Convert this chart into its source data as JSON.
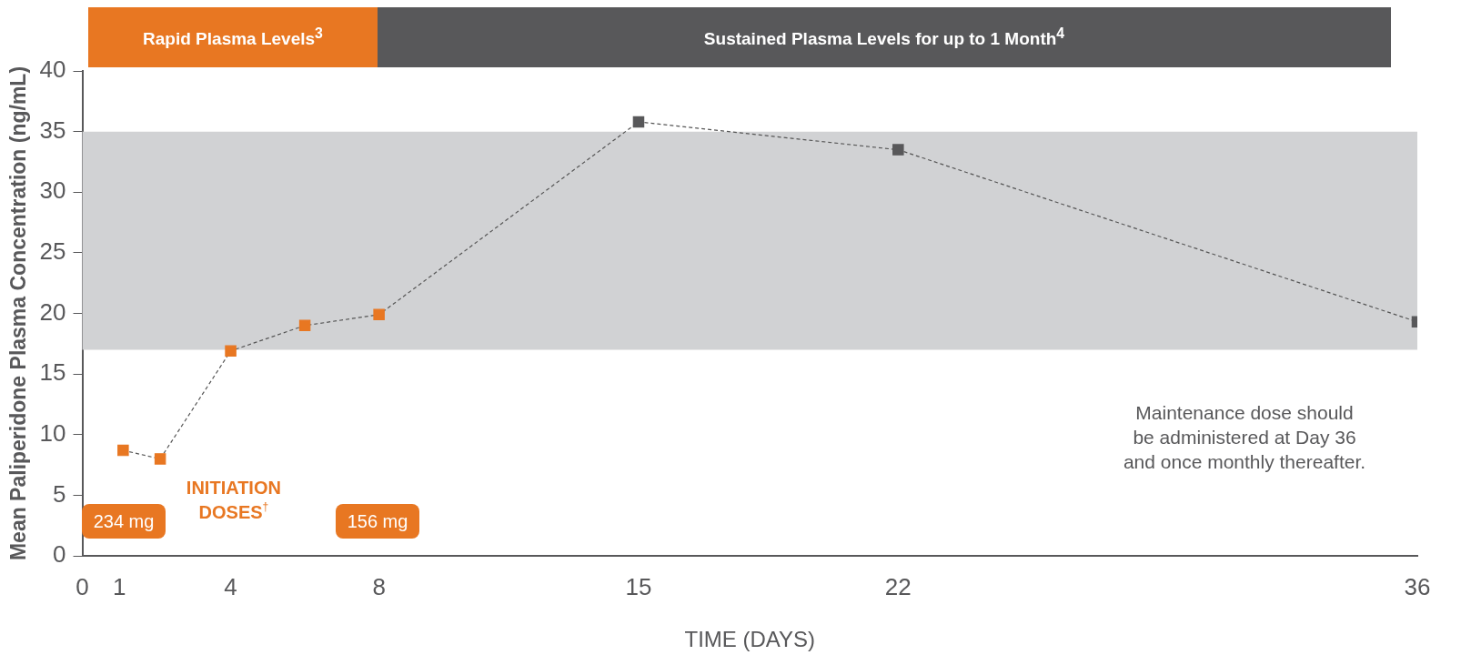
{
  "chart_data": {
    "type": "line",
    "xlabel": "TIME (DAYS)",
    "ylabel": "Mean Paliperidone Plasma Concentration (ng/mL)",
    "x": [
      1.1,
      2.1,
      4,
      6,
      8,
      15,
      22,
      36
    ],
    "series": [
      {
        "color": "#555555",
        "colors": [
          "#e87722",
          "#e87722",
          "#e87722",
          "#e87722",
          "#e87722",
          "#58585a",
          "#58585a",
          "#58585a"
        ],
        "values": [
          8.7,
          8,
          16.9,
          19,
          19.9,
          35.8,
          33.5,
          19.3
        ]
      }
    ],
    "xlim": [
      0,
      36
    ],
    "xticks": [
      0,
      1,
      4,
      8,
      15,
      22,
      36
    ],
    "ylim": [
      0,
      40
    ],
    "yticks": [
      0,
      5,
      10,
      15,
      20,
      25,
      30,
      35,
      40
    ],
    "marker": "square",
    "line_style": "dashed",
    "grid": false,
    "legend": false,
    "bands": [
      {
        "axis": "y",
        "from": 17,
        "to": 35,
        "color": "#d1d2d4"
      }
    ],
    "annotations": [
      "Rapid Plasma Levels$^{3}$",
      "Sustained Plasma Levels for up to 1 Month$^{4}$",
      "234 mg",
      "156 mg",
      "INITIATION\nDOSES$^{†}$",
      "Maintenance dose should\nbe administered at Day 36\nand once monthly thereafter."
    ]
  }
}
